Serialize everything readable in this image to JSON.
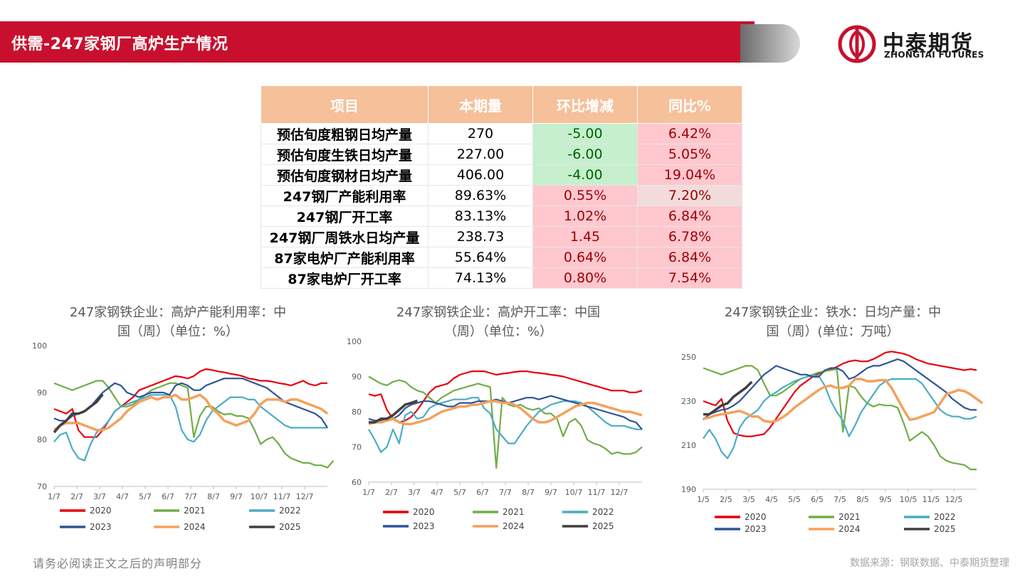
{
  "header": {
    "title": "供需-247家钢厂高炉生产情况"
  },
  "logo": {
    "cn": "中泰期货",
    "en": "ZHONGTAI FUTURES"
  },
  "table": {
    "headers": [
      "项目",
      "本期量",
      "环比增减",
      "同比%"
    ],
    "rows": [
      [
        "预估旬度粗钢日均产量",
        "270",
        "-5.00",
        "6.42%"
      ],
      [
        "预估旬度生铁日均产量",
        "227.00",
        "-6.00",
        "5.05%"
      ],
      [
        "预估旬度钢材日均产量",
        "406.00",
        "-4.00",
        "19.04%"
      ],
      [
        "247钢厂产能利用率",
        "89.63%",
        "0.55%",
        "7.20%"
      ],
      [
        "247钢厂开工率",
        "83.13%",
        "1.02%",
        "6.84%"
      ],
      [
        "247钢厂周铁水日均产量",
        "238.73",
        "1.45",
        "6.78%"
      ],
      [
        "87家电炉厂产能利用率",
        "55.64%",
        "0.64%",
        "6.84%"
      ],
      [
        "87家电炉厂开工率",
        "74.13%",
        "0.80%",
        "7.54%"
      ]
    ],
    "cell_classes": [
      [
        "",
        "",
        "g",
        "r"
      ],
      [
        "",
        "",
        "g",
        "r"
      ],
      [
        "",
        "",
        "g",
        "r"
      ],
      [
        "",
        "",
        "r",
        "rl"
      ],
      [
        "",
        "",
        "r",
        "r"
      ],
      [
        "",
        "",
        "r",
        "r"
      ],
      [
        "",
        "",
        "r",
        "r"
      ],
      [
        "",
        "",
        "r",
        "r"
      ]
    ]
  },
  "colors": {
    "2020": "#e8000b",
    "2021": "#70ad47",
    "2022": "#4bacc6",
    "2023": "#2f5597",
    "2024": "#f4a15d",
    "2025": "#404040"
  },
  "chart_data": [
    {
      "type": "line",
      "title": [
        "247家钢铁企业：高炉产能利用率：中",
        "国（周）（单位：%）"
      ],
      "ylim": [
        70,
        100
      ],
      "yticks": [
        70,
        80,
        90,
        100
      ],
      "xticks": [
        "1/7",
        "2/7",
        "3/7",
        "4/7",
        "5/7",
        "6/7",
        "7/7",
        "8/7",
        "9/7",
        "10/7",
        "11/7",
        "12/7"
      ],
      "series": [
        {
          "name": "2020",
          "values": [
            86.5,
            86,
            85.5,
            86.5,
            82,
            80.5,
            80.5,
            80.5,
            82,
            84,
            86,
            87,
            88,
            89,
            90.5,
            91,
            91.5,
            92,
            92.5,
            93,
            93.5,
            93.3,
            93,
            93.5,
            94.5,
            95,
            94.8,
            94.5,
            94.3,
            94,
            93.8,
            93.5,
            93,
            92.8,
            92.5,
            92.5,
            92.3,
            92,
            91.8,
            91.5,
            92,
            92.5,
            91.8,
            91.5,
            92,
            92
          ]
        },
        {
          "name": "2021",
          "values": [
            92,
            91.5,
            91,
            90.5,
            91,
            91.5,
            92,
            92.5,
            92.5,
            91,
            89,
            87,
            87,
            87.5,
            88.5,
            89.5,
            90.5,
            91,
            91.5,
            92,
            92,
            91.5,
            91,
            80.5,
            85,
            87,
            87,
            86,
            85.3,
            85.5,
            85,
            85,
            84.5,
            82,
            79,
            80,
            80.5,
            79,
            77,
            76,
            75.5,
            75,
            75,
            74.5,
            74.5,
            74,
            75.5
          ]
        },
        {
          "name": "2022",
          "values": [
            79.5,
            81,
            81.5,
            78,
            76,
            75.5,
            79,
            81.5,
            82.5,
            84,
            86,
            87,
            87.5,
            88,
            88.5,
            89,
            89.5,
            89.5,
            89.5,
            89.5,
            87,
            82,
            80,
            79.5,
            81,
            84,
            86,
            87,
            88,
            89,
            89,
            89,
            88.5,
            88.5,
            87,
            86,
            85,
            84,
            83,
            82.5,
            82.5,
            82.5,
            82.5,
            82.5,
            82.5,
            82.5
          ]
        },
        {
          "name": "2023",
          "values": [
            84.5,
            84,
            84,
            85,
            85.5,
            86,
            87,
            88.5,
            90,
            91,
            92,
            91.5,
            90,
            89.5,
            89,
            89.5,
            90,
            90,
            90,
            89.5,
            91.5,
            92,
            91.5,
            90.5,
            90.5,
            91.5,
            92,
            92.5,
            93,
            93,
            93,
            93,
            92.5,
            92,
            91.5,
            91,
            90,
            89,
            88,
            87.5,
            87,
            86.5,
            86,
            85.5,
            84.5,
            82.5
          ]
        },
        {
          "name": "2024",
          "values": [
            82,
            83,
            83.5,
            83.5,
            83.5,
            83,
            82.5,
            82,
            82,
            82.5,
            83.5,
            84.5,
            86,
            87,
            88,
            88.5,
            89,
            88.5,
            89,
            89,
            89.5,
            88.5,
            88.5,
            89,
            89.5,
            88.5,
            86.5,
            85.5,
            84,
            83.5,
            83,
            83.5,
            84,
            85.5,
            87.5,
            88.5,
            88.5,
            88.5,
            88,
            88.5,
            88.5,
            88,
            87.5,
            87,
            86.5,
            85.5
          ]
        },
        {
          "name": "2025",
          "values": [
            81.5,
            83,
            84,
            85.5,
            85.5,
            86,
            87,
            88,
            89.63
          ]
        }
      ]
    },
    {
      "type": "line",
      "title": [
        "247家钢铁企业：高炉开工率：中国",
        "（周）（单位：%）"
      ],
      "ylim": [
        60,
        100
      ],
      "yticks": [
        60,
        70,
        80,
        90,
        100
      ],
      "xticks": [
        "1/7",
        "2/7",
        "3/7",
        "4/7",
        "5/7",
        "6/7",
        "7/7",
        "8/7",
        "9/7",
        "10/7",
        "11/7",
        "12/7"
      ],
      "series": [
        {
          "name": "2020",
          "values": [
            85,
            84.5,
            85,
            80.5,
            78,
            77,
            77.5,
            78.5,
            80.5,
            83,
            85.5,
            87,
            87.5,
            88,
            89.5,
            90.5,
            91,
            91.5,
            91.5,
            91.5,
            91,
            90.5,
            90.8,
            91,
            91.3,
            91.5,
            91.5,
            91.2,
            91,
            90.8,
            90.5,
            90.3,
            90,
            89.5,
            89,
            88.5,
            88,
            87.5,
            87,
            86.5,
            86,
            86,
            86,
            85.5,
            85.5,
            86
          ]
        },
        {
          "name": "2021",
          "values": [
            90,
            89,
            88,
            87.5,
            88.5,
            89,
            88.5,
            87,
            86,
            85.5,
            84,
            82.5,
            84,
            85,
            86,
            86.5,
            87,
            87.5,
            88,
            87.5,
            87,
            64,
            84,
            82,
            81.5,
            82,
            81,
            80.5,
            81,
            79.5,
            79.5,
            78,
            73,
            77,
            78,
            76,
            72,
            71,
            70.5,
            69.5,
            68,
            68.5,
            68,
            68,
            68.5,
            70
          ]
        },
        {
          "name": "2022",
          "values": [
            75,
            72,
            68.5,
            70,
            75,
            71,
            79,
            80,
            78,
            78.5,
            81,
            82,
            82.5,
            83,
            83.5,
            83.5,
            83.5,
            84,
            84,
            81,
            79.5,
            75,
            73,
            71,
            71,
            73.5,
            76,
            78,
            80,
            81,
            82,
            82.5,
            83,
            83,
            83,
            82.5,
            81.5,
            80,
            78.5,
            77,
            76,
            76,
            76,
            75.5,
            75,
            75
          ]
        },
        {
          "name": "2023",
          "values": [
            78,
            77.5,
            77.5,
            77.5,
            78,
            79,
            81,
            82,
            82.5,
            83,
            83,
            82.5,
            82,
            81.5,
            81.5,
            82.5,
            82.5,
            82.5,
            83,
            83,
            83,
            83.5,
            83,
            82.5,
            83,
            83.5,
            84,
            84,
            83.5,
            84,
            84.5,
            84,
            83.5,
            83,
            82.5,
            82,
            81.5,
            81,
            80.5,
            80,
            79.5,
            79,
            78.5,
            77.5,
            77,
            75
          ]
        },
        {
          "name": "2024",
          "values": [
            76.5,
            77,
            77,
            77.5,
            78,
            77,
            76.5,
            76.5,
            77,
            77.5,
            78,
            79,
            80,
            80.5,
            81,
            81.5,
            81.5,
            82,
            82,
            82.5,
            83,
            83,
            82.5,
            82.5,
            82,
            81,
            79.5,
            78,
            77,
            77,
            77.5,
            78.5,
            79.5,
            80.5,
            81.5,
            82,
            82.5,
            82.5,
            82,
            81.5,
            81,
            80.5,
            80,
            80,
            79.5,
            79
          ]
        },
        {
          "name": "2025",
          "values": [
            77,
            77,
            78,
            78,
            79,
            80.5,
            82,
            82.5,
            83.13
          ]
        }
      ]
    },
    {
      "type": "line",
      "title": [
        "247家钢铁企业：铁水：日均产量：中",
        "国（周）(单位：万吨）"
      ],
      "ylim": [
        190,
        250
      ],
      "yticks": [
        190,
        210,
        230,
        250
      ],
      "xticks": [
        "1/5",
        "2/5",
        "3/5",
        "4/5",
        "5/5",
        "6/5",
        "7/5",
        "8/5",
        "9/5",
        "10/5",
        "11/5",
        "12/5"
      ],
      "series": [
        {
          "name": "2020",
          "values": [
            230,
            229,
            228,
            231,
            221,
            215.5,
            214.5,
            214,
            214,
            214.5,
            215,
            218,
            222,
            226,
            230,
            234,
            237,
            239,
            241,
            242.5,
            243.5,
            244.5,
            245.5,
            247,
            248,
            248.5,
            248,
            248,
            249,
            250.5,
            252,
            252.5,
            252,
            251.5,
            250.5,
            249,
            248,
            247,
            246.5,
            246,
            245.5,
            245,
            244.5,
            244,
            244.5,
            244
          ]
        },
        {
          "name": "2021",
          "values": [
            245,
            244,
            243,
            242,
            243,
            244,
            245,
            246,
            246,
            244,
            238,
            232.5,
            232.5,
            234,
            236,
            238,
            240,
            241,
            242,
            243,
            243.5,
            244,
            244.5,
            216,
            237,
            236,
            232,
            229,
            227.5,
            228.5,
            228,
            228,
            227,
            220,
            212,
            214,
            216,
            214,
            210,
            205,
            203,
            202,
            201.5,
            201,
            199,
            199
          ]
        },
        {
          "name": "2022",
          "values": [
            213,
            217,
            213,
            207,
            204,
            209,
            218,
            222,
            224,
            226,
            230,
            232.5,
            234,
            236,
            237.5,
            239,
            240,
            241,
            241.5,
            241.5,
            237,
            230,
            225,
            221,
            214,
            219,
            225,
            229,
            233,
            237,
            239,
            240,
            240,
            240,
            240,
            240,
            238,
            234,
            230,
            226,
            224,
            223,
            223,
            222,
            222,
            223
          ]
        },
        {
          "name": "2023",
          "values": [
            221.5,
            224,
            225,
            226,
            226.5,
            228,
            230,
            233,
            236,
            239,
            242,
            244,
            246,
            245,
            244,
            243,
            242,
            242,
            241,
            241,
            244,
            245,
            245,
            243.5,
            240,
            241,
            243,
            245,
            246,
            246,
            247,
            248,
            249,
            248,
            246,
            244,
            242,
            240,
            238,
            236,
            234,
            231,
            229,
            227,
            226,
            226
          ]
        },
        {
          "name": "2024",
          "values": [
            222,
            222.5,
            223.5,
            224,
            224.5,
            225,
            225.5,
            224.5,
            223,
            223,
            221,
            220.5,
            221,
            222.5,
            224.5,
            227,
            229,
            231,
            233,
            235,
            236.5,
            237,
            236,
            236,
            237,
            240,
            240,
            239,
            239,
            239.5,
            239.5,
            236,
            231,
            226,
            221.5,
            222,
            223,
            224,
            225,
            229,
            233,
            234,
            235,
            234.5,
            233,
            231,
            229
          ]
        },
        {
          "name": "2025",
          "values": [
            224,
            224,
            226,
            228,
            229,
            232,
            234,
            236,
            238.73
          ]
        }
      ]
    }
  ],
  "footer": {
    "disclaimer": "请务必阅读正文之后的声明部分",
    "source": "数据来源：钢联数据、中泰期货整理"
  }
}
